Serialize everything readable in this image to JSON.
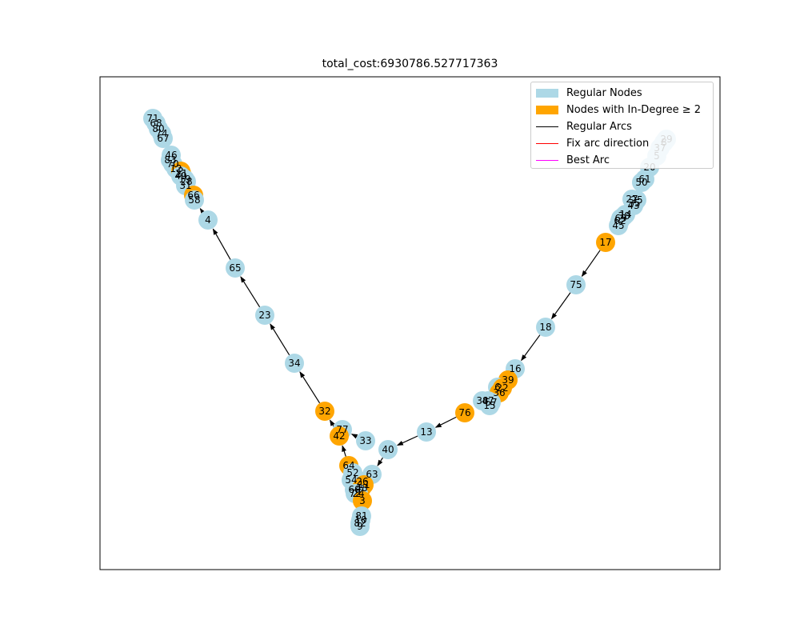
{
  "title": "total_cost:6930786.527717363",
  "legend": [
    {
      "label": "Regular Nodes",
      "kind": "patch",
      "color": "#add8e6"
    },
    {
      "label": "Nodes with In-Degree ≥ 2",
      "kind": "patch",
      "color": "#ffa500"
    },
    {
      "label": "Regular Arcs",
      "kind": "line",
      "color": "#000000"
    },
    {
      "label": "Fix arc direction",
      "kind": "line",
      "color": "#ff0000"
    },
    {
      "label": "Best Arc",
      "kind": "line",
      "color": "#ff00ff"
    }
  ],
  "colors": {
    "regular": "#add8e6",
    "in_degree_2": "#ffa500",
    "arc": "#000000",
    "frame": "#000000"
  },
  "nodes": [
    {
      "id": "71",
      "type": "regular",
      "pos": [
        191,
        148
      ]
    },
    {
      "id": "68",
      "type": "regular",
      "pos": [
        195,
        154
      ]
    },
    {
      "id": "80",
      "type": "regular",
      "pos": [
        198,
        161
      ]
    },
    {
      "id": "74",
      "type": "regular",
      "pos": [
        202,
        167
      ]
    },
    {
      "id": "67",
      "type": "regular",
      "pos": [
        204,
        173
      ]
    },
    {
      "id": "46",
      "type": "regular",
      "pos": [
        214,
        194
      ]
    },
    {
      "id": "83",
      "type": "regular",
      "pos": [
        213,
        200
      ]
    },
    {
      "id": "70",
      "type": "regular",
      "pos": [
        216,
        205
      ]
    },
    {
      "id": "12",
      "type": "regular",
      "pos": [
        220,
        211
      ]
    },
    {
      "id": "2",
      "type": "in_degree_2",
      "pos": [
        226,
        214
      ]
    },
    {
      "id": "21",
      "type": "in_degree_2",
      "pos": [
        227,
        217
      ]
    },
    {
      "id": "49",
      "type": "regular",
      "pos": [
        226,
        220
      ]
    },
    {
      "id": "19",
      "type": "regular",
      "pos": [
        231,
        224
      ]
    },
    {
      "id": "28",
      "type": "regular",
      "pos": [
        233,
        227
      ]
    },
    {
      "id": "31",
      "type": "regular",
      "pos": [
        232,
        232
      ]
    },
    {
      "id": "66",
      "type": "in_degree_2",
      "pos": [
        242,
        244
      ]
    },
    {
      "id": "58",
      "type": "regular",
      "pos": [
        243,
        250
      ]
    },
    {
      "id": "4",
      "type": "regular",
      "pos": [
        260,
        275
      ]
    },
    {
      "id": "65",
      "type": "regular",
      "pos": [
        294,
        335
      ]
    },
    {
      "id": "23",
      "type": "regular",
      "pos": [
        331,
        394
      ]
    },
    {
      "id": "34",
      "type": "regular",
      "pos": [
        368,
        454
      ]
    },
    {
      "id": "32",
      "type": "in_degree_2",
      "pos": [
        406,
        514
      ]
    },
    {
      "id": "77",
      "type": "regular",
      "pos": [
        428,
        537
      ]
    },
    {
      "id": "42",
      "type": "in_degree_2",
      "pos": [
        424,
        545
      ]
    },
    {
      "id": "33",
      "type": "regular",
      "pos": [
        457,
        551
      ]
    },
    {
      "id": "40",
      "type": "regular",
      "pos": [
        485,
        562
      ]
    },
    {
      "id": "13",
      "type": "regular",
      "pos": [
        533,
        540
      ]
    },
    {
      "id": "76",
      "type": "in_degree_2",
      "pos": [
        581,
        516
      ]
    },
    {
      "id": "64",
      "type": "in_degree_2",
      "pos": [
        436,
        582
      ]
    },
    {
      "id": "63",
      "type": "regular",
      "pos": [
        465,
        593
      ]
    },
    {
      "id": "52",
      "type": "regular",
      "pos": [
        441,
        591
      ]
    },
    {
      "id": "54",
      "type": "regular",
      "pos": [
        439,
        600
      ]
    },
    {
      "id": "26",
      "type": "regular",
      "pos": [
        453,
        602
      ]
    },
    {
      "id": "11",
      "type": "in_degree_2",
      "pos": [
        455,
        606
      ]
    },
    {
      "id": "60",
      "type": "regular",
      "pos": [
        443,
        612
      ]
    },
    {
      "id": "48",
      "type": "in_degree_2",
      "pos": [
        452,
        610
      ]
    },
    {
      "id": "72",
      "type": "regular",
      "pos": [
        444,
        617
      ]
    },
    {
      "id": "24",
      "type": "regular",
      "pos": [
        448,
        617
      ]
    },
    {
      "id": "3",
      "type": "in_degree_2",
      "pos": [
        453,
        626
      ]
    },
    {
      "id": "81",
      "type": "regular",
      "pos": [
        452,
        645
      ]
    },
    {
      "id": "10",
      "type": "regular",
      "pos": [
        451,
        650
      ]
    },
    {
      "id": "82",
      "type": "regular",
      "pos": [
        450,
        654
      ]
    },
    {
      "id": "9",
      "type": "regular",
      "pos": [
        450,
        658
      ]
    },
    {
      "id": "29",
      "type": "regular",
      "pos": [
        833,
        174
      ]
    },
    {
      "id": "8",
      "type": "regular",
      "pos": [
        830,
        178
      ]
    },
    {
      "id": "37",
      "type": "regular",
      "pos": [
        825,
        185
      ]
    },
    {
      "id": "5",
      "type": "regular",
      "pos": [
        821,
        195
      ]
    },
    {
      "id": "20",
      "type": "regular",
      "pos": [
        812,
        209
      ]
    },
    {
      "id": "61",
      "type": "regular",
      "pos": [
        806,
        224
      ]
    },
    {
      "id": "50",
      "type": "regular",
      "pos": [
        802,
        228
      ]
    },
    {
      "id": "27",
      "type": "regular",
      "pos": [
        790,
        249
      ]
    },
    {
      "id": "25",
      "type": "regular",
      "pos": [
        796,
        250
      ]
    },
    {
      "id": "35",
      "type": "regular",
      "pos": [
        793,
        254
      ]
    },
    {
      "id": "43",
      "type": "regular",
      "pos": [
        792,
        257
      ]
    },
    {
      "id": "14",
      "type": "regular",
      "pos": [
        782,
        268
      ]
    },
    {
      "id": "30",
      "type": "regular",
      "pos": [
        780,
        270
      ]
    },
    {
      "id": "69",
      "type": "regular",
      "pos": [
        776,
        273
      ]
    },
    {
      "id": "62",
      "type": "regular",
      "pos": [
        775,
        276
      ]
    },
    {
      "id": "45",
      "type": "regular",
      "pos": [
        773,
        282
      ]
    },
    {
      "id": "17",
      "type": "in_degree_2",
      "pos": [
        757,
        303
      ]
    },
    {
      "id": "75",
      "type": "regular",
      "pos": [
        720,
        356
      ]
    },
    {
      "id": "18",
      "type": "regular",
      "pos": [
        682,
        409
      ]
    },
    {
      "id": "16",
      "type": "regular",
      "pos": [
        644,
        461
      ]
    },
    {
      "id": "39",
      "type": "in_degree_2",
      "pos": [
        635,
        475
      ]
    },
    {
      "id": "6",
      "type": "regular",
      "pos": [
        622,
        484
      ]
    },
    {
      "id": "22",
      "type": "in_degree_2",
      "pos": [
        628,
        485
      ]
    },
    {
      "id": "36",
      "type": "in_degree_2",
      "pos": [
        624,
        491
      ]
    },
    {
      "id": "38",
      "type": "regular",
      "pos": [
        603,
        501
      ]
    },
    {
      "id": "47",
      "type": "regular",
      "pos": [
        610,
        501
      ]
    },
    {
      "id": "57",
      "type": "regular",
      "pos": [
        614,
        503
      ]
    },
    {
      "id": "15",
      "type": "regular",
      "pos": [
        612,
        507
      ]
    }
  ],
  "edges": [
    [
      "17",
      "75"
    ],
    [
      "75",
      "18"
    ],
    [
      "18",
      "16"
    ],
    [
      "76",
      "13"
    ],
    [
      "13",
      "40"
    ],
    [
      "40",
      "63"
    ],
    [
      "33",
      "77"
    ],
    [
      "42",
      "32"
    ],
    [
      "32",
      "34"
    ],
    [
      "34",
      "23"
    ],
    [
      "23",
      "65"
    ],
    [
      "65",
      "4"
    ],
    [
      "4",
      "58"
    ],
    [
      "64",
      "42"
    ]
  ]
}
